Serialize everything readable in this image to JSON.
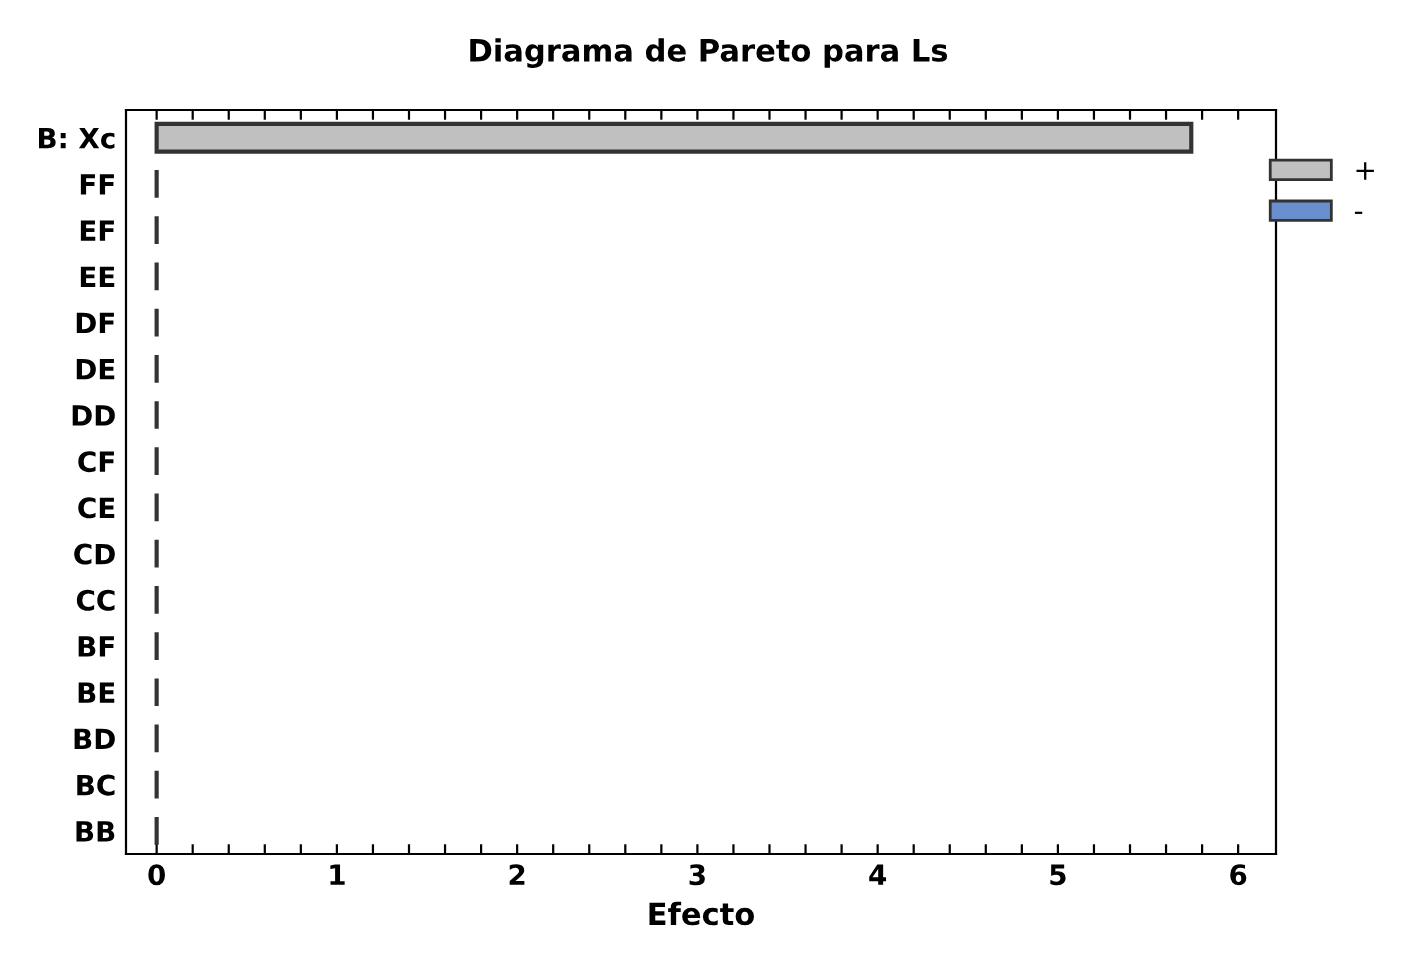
{
  "chart_data": {
    "type": "bar",
    "orientation": "horizontal",
    "title": "Diagrama de Pareto para Ls",
    "xlabel": "Efecto",
    "categories": [
      "B: Xc",
      "FF",
      "EF",
      "EE",
      "DF",
      "DE",
      "DD",
      "CF",
      "CE",
      "CD",
      "CC",
      "BF",
      "BE",
      "BD",
      "BC",
      "BB"
    ],
    "series": [
      {
        "name": "+",
        "color": "#c0c0c0",
        "colors": [
          "#c0c0c0",
          "#333333",
          "#333333",
          "#333333",
          "#333333",
          "#333333",
          "#333333",
          "#333333",
          "#333333",
          "#333333",
          "#333333",
          "#333333",
          "#333333",
          "#333333",
          "#333333",
          "#333333"
        ],
        "values": [
          5.74,
          0,
          0,
          0,
          0,
          0,
          0,
          0,
          0,
          0,
          0,
          0,
          0,
          0,
          0,
          0
        ]
      },
      {
        "name": "-",
        "color": "#6a8fcf",
        "values": [
          null,
          null,
          null,
          null,
          null,
          null,
          null,
          null,
          null,
          null,
          null,
          null,
          null,
          null,
          null,
          null
        ]
      }
    ],
    "xlim": [
      -0.17,
      6.21
    ],
    "xticks": [
      0,
      {
        "value": 0.2,
        "label": null
      },
      {
        "value": 0.4,
        "label": null
      },
      {
        "value": 0.6,
        "label": null
      },
      {
        "value": 0.8,
        "label": null
      },
      1,
      {
        "value": 1.2,
        "label": null
      },
      {
        "value": 1.4,
        "label": null
      },
      {
        "value": 1.6,
        "label": null
      },
      {
        "value": 1.8,
        "label": null
      },
      2,
      {
        "value": 2.2,
        "label": null
      },
      {
        "value": 2.4,
        "label": null
      },
      {
        "value": 2.6,
        "label": null
      },
      {
        "value": 2.8,
        "label": null
      },
      3,
      {
        "value": 3.2,
        "label": null
      },
      {
        "value": 3.4,
        "label": null
      },
      {
        "value": 3.6,
        "label": null
      },
      {
        "value": 3.8,
        "label": null
      },
      4,
      {
        "value": 4.2,
        "label": null
      },
      {
        "value": 4.4,
        "label": null
      },
      {
        "value": 4.6,
        "label": null
      },
      {
        "value": 4.8,
        "label": null
      },
      5,
      {
        "value": 5.2,
        "label": null
      },
      {
        "value": 5.4,
        "label": null
      },
      {
        "value": 5.6,
        "label": null
      },
      {
        "value": 5.8,
        "label": null
      },
      6
    ],
    "grid": false,
    "legend": "top right"
  }
}
